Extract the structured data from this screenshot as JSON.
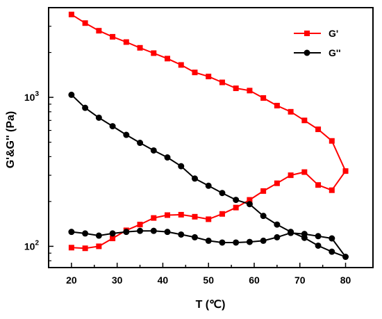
{
  "chart_data": {
    "type": "line",
    "xlabel": "T (℃)",
    "ylabel": "G'&G'' (Pa)",
    "x_ticks": [
      20,
      30,
      40,
      50,
      60,
      70,
      80
    ],
    "y_ticks": [
      {
        "value": 100,
        "label": "10",
        "exp": "2"
      },
      {
        "value": 1000,
        "label": "10",
        "exp": "3"
      }
    ],
    "xlim": [
      15,
      86
    ],
    "ylim": [
      72,
      4000
    ],
    "y_scale": "log",
    "grid": false,
    "legend_position": "top-right",
    "series": [
      {
        "name": "G'",
        "color": "#ff0000",
        "marker": "square",
        "points": [
          [
            20,
            3600
          ],
          [
            23,
            3150
          ],
          [
            26,
            2800
          ],
          [
            29,
            2550
          ],
          [
            32,
            2350
          ],
          [
            35,
            2150
          ],
          [
            38,
            1980
          ],
          [
            41,
            1820
          ],
          [
            44,
            1650
          ],
          [
            47,
            1470
          ],
          [
            50,
            1380
          ],
          [
            53,
            1260
          ],
          [
            56,
            1150
          ],
          [
            59,
            1110
          ],
          [
            62,
            990
          ],
          [
            65,
            880
          ],
          [
            68,
            800
          ],
          [
            71,
            700
          ],
          [
            74,
            610
          ],
          [
            77,
            510
          ],
          [
            80,
            320
          ],
          [
            77,
            238
          ],
          [
            74,
            258
          ],
          [
            71,
            315
          ],
          [
            68,
            300
          ],
          [
            65,
            265
          ],
          [
            62,
            235
          ],
          [
            59,
            205
          ],
          [
            56,
            182
          ],
          [
            53,
            165
          ],
          [
            50,
            152
          ],
          [
            47,
            158
          ],
          [
            44,
            163
          ],
          [
            41,
            162
          ],
          [
            38,
            155
          ],
          [
            35,
            140
          ],
          [
            32,
            128
          ],
          [
            29,
            113
          ],
          [
            26,
            100
          ],
          [
            23,
            97
          ],
          [
            20,
            98
          ]
        ]
      },
      {
        "name": "G''",
        "color": "#000000",
        "marker": "circle",
        "points": [
          [
            20,
            1040
          ],
          [
            23,
            850
          ],
          [
            26,
            730
          ],
          [
            29,
            640
          ],
          [
            32,
            560
          ],
          [
            35,
            495
          ],
          [
            38,
            440
          ],
          [
            41,
            395
          ],
          [
            44,
            345
          ],
          [
            47,
            285
          ],
          [
            50,
            255
          ],
          [
            53,
            228
          ],
          [
            56,
            205
          ],
          [
            59,
            192
          ],
          [
            62,
            160
          ],
          [
            65,
            140
          ],
          [
            68,
            125
          ],
          [
            71,
            114
          ],
          [
            74,
            101
          ],
          [
            77,
            92
          ],
          [
            80,
            85
          ],
          [
            77,
            113
          ],
          [
            74,
            117
          ],
          [
            71,
            121
          ],
          [
            68,
            123
          ],
          [
            65,
            115
          ],
          [
            62,
            109
          ],
          [
            59,
            107
          ],
          [
            56,
            106
          ],
          [
            53,
            106
          ],
          [
            50,
            109
          ],
          [
            47,
            115
          ],
          [
            44,
            120
          ],
          [
            41,
            125
          ],
          [
            38,
            127
          ],
          [
            35,
            127
          ],
          [
            32,
            125
          ],
          [
            29,
            122
          ],
          [
            26,
            118
          ],
          [
            23,
            122
          ],
          [
            20,
            125
          ]
        ]
      }
    ]
  }
}
